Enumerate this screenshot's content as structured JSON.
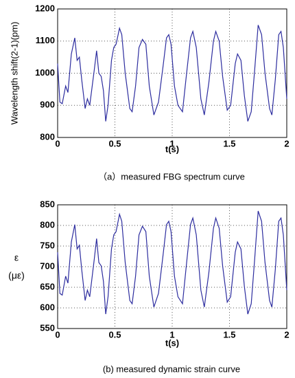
{
  "chart_data": [
    {
      "type": "line",
      "ylabel": "Wavelength shift(2-1)(pm)",
      "xlabel": "t(s)",
      "caption": "（a）measured FBG spectrum curve",
      "xlim": [
        0,
        2
      ],
      "xticks": [
        0,
        0.5,
        1,
        1.5,
        2
      ],
      "ylim": [
        800,
        1200
      ],
      "yticks": [
        800,
        900,
        1000,
        1100,
        1200
      ],
      "grid": true,
      "x": [
        0,
        0.02,
        0.04,
        0.07,
        0.09,
        0.12,
        0.15,
        0.17,
        0.19,
        0.21,
        0.24,
        0.26,
        0.28,
        0.32,
        0.34,
        0.36,
        0.38,
        0.4,
        0.42,
        0.44,
        0.47,
        0.49,
        0.51,
        0.54,
        0.56,
        0.59,
        0.63,
        0.65,
        0.68,
        0.71,
        0.74,
        0.77,
        0.8,
        0.84,
        0.88,
        0.92,
        0.95,
        0.97,
        0.99,
        1.02,
        1.05,
        1.09,
        1.12,
        1.16,
        1.18,
        1.21,
        1.25,
        1.28,
        1.32,
        1.36,
        1.38,
        1.41,
        1.44,
        1.48,
        1.51,
        1.55,
        1.57,
        1.6,
        1.63,
        1.66,
        1.69,
        1.72,
        1.75,
        1.78,
        1.81,
        1.85,
        1.87,
        1.9,
        1.93,
        1.95,
        1.97,
        2
      ],
      "series": [
        {
          "color": "#2b2b9e",
          "values": [
            1030,
            910,
            905,
            960,
            940,
            1060,
            1110,
            1040,
            1050,
            980,
            890,
            920,
            900,
            1010,
            1070,
            1000,
            990,
            945,
            850,
            900,
            1040,
            1080,
            1090,
            1140,
            1120,
            1000,
            890,
            880,
            960,
            1080,
            1105,
            1090,
            960,
            870,
            910,
            1020,
            1110,
            1120,
            1090,
            960,
            900,
            880,
            980,
            1110,
            1130,
            1080,
            920,
            870,
            970,
            1100,
            1130,
            1100,
            990,
            885,
            900,
            1030,
            1060,
            1040,
            930,
            850,
            880,
            1010,
            1150,
            1120,
            1000,
            890,
            870,
            980,
            1120,
            1130,
            1080,
            920
          ]
        }
      ]
    },
    {
      "type": "line",
      "ylabel": [
        "ε",
        "(με)"
      ],
      "xlabel": "t(s)",
      "caption": "(b) measured dynamic strain curve",
      "xlim": [
        0,
        2
      ],
      "xticks": [
        0,
        0.5,
        1,
        1.5,
        2
      ],
      "ylim": [
        550,
        850
      ],
      "yticks": [
        550,
        600,
        650,
        700,
        750,
        800,
        850
      ],
      "grid": true,
      "x": [
        0,
        0.02,
        0.04,
        0.07,
        0.09,
        0.12,
        0.15,
        0.17,
        0.19,
        0.21,
        0.24,
        0.26,
        0.28,
        0.32,
        0.34,
        0.36,
        0.38,
        0.4,
        0.42,
        0.44,
        0.47,
        0.49,
        0.51,
        0.54,
        0.56,
        0.59,
        0.63,
        0.65,
        0.68,
        0.71,
        0.74,
        0.77,
        0.8,
        0.84,
        0.88,
        0.92,
        0.95,
        0.97,
        0.99,
        1.02,
        1.05,
        1.09,
        1.12,
        1.16,
        1.18,
        1.21,
        1.25,
        1.28,
        1.32,
        1.36,
        1.38,
        1.41,
        1.44,
        1.48,
        1.51,
        1.55,
        1.57,
        1.6,
        1.63,
        1.66,
        1.69,
        1.72,
        1.75,
        1.78,
        1.81,
        1.85,
        1.87,
        1.9,
        1.93,
        1.95,
        1.97,
        2
      ],
      "series": [
        {
          "color": "#2b2b9e",
          "values": [
            735,
            635,
            631,
            677,
            660,
            760,
            802,
            743,
            752,
            693,
            618,
            643,
            627,
            718,
            768,
            710,
            702,
            664,
            585,
            627,
            743,
            777,
            785,
            827,
            810,
            710,
            618,
            610,
            677,
            777,
            798,
            785,
            677,
            602,
            635,
            727,
            802,
            810,
            785,
            677,
            627,
            610,
            693,
            802,
            818,
            777,
            643,
            602,
            685,
            793,
            818,
            793,
            702,
            614,
            627,
            735,
            760,
            743,
            652,
            585,
            610,
            718,
            835,
            810,
            710,
            618,
            602,
            693,
            810,
            818,
            777,
            643
          ]
        }
      ]
    }
  ]
}
